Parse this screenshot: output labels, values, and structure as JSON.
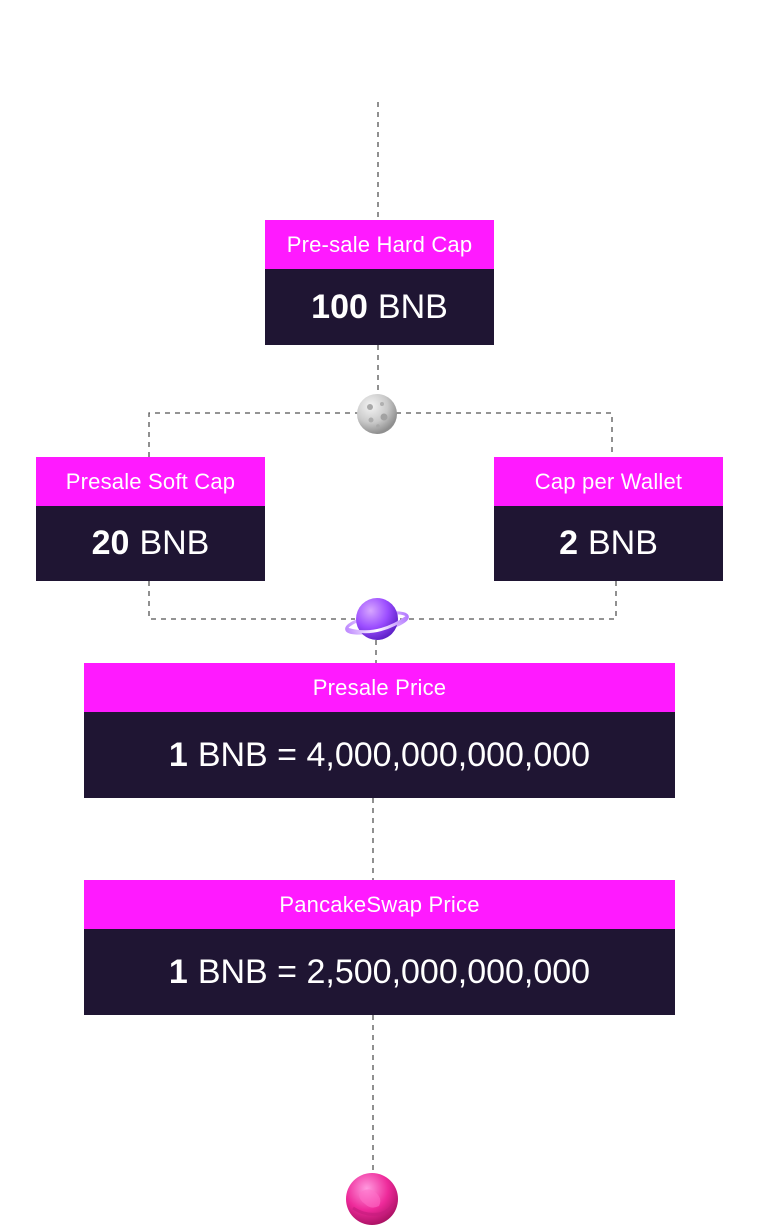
{
  "cards": {
    "hard_cap": {
      "title": "Pre-sale Hard Cap",
      "amount": "100",
      "unit": "BNB"
    },
    "soft_cap": {
      "title": "Presale Soft Cap",
      "amount": "20",
      "unit": "BNB"
    },
    "wallet_cap": {
      "title": "Cap per Wallet",
      "amount": "2",
      "unit": "BNB"
    },
    "presale_price": {
      "title": "Presale Price",
      "amount": "1",
      "unit": "BNB = 4,000,000,000,000"
    },
    "pancake_price": {
      "title": "PancakeSwap Price",
      "amount": "1",
      "unit": "BNB = 2,500,000,000,000"
    }
  },
  "icons": {
    "moon": "moon-icon",
    "planet": "ringed-planet-icon",
    "pink_planet": "pink-planet-icon"
  },
  "colors": {
    "header": "#ff1aff",
    "body": "#1f1533",
    "connector": "#555555"
  }
}
